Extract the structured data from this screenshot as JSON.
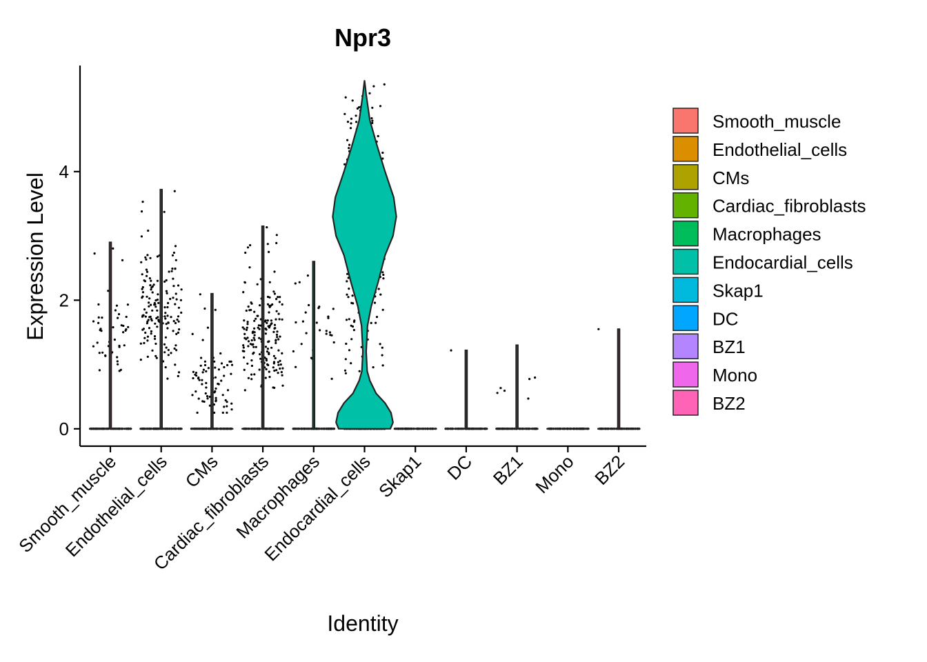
{
  "chart_data": {
    "type": "violin",
    "title": "Npr3",
    "xlabel": "Identity",
    "ylabel": "Expression Level",
    "ylim": [
      -0.27,
      5.65
    ],
    "yticks": [
      0,
      2,
      4
    ],
    "grid": false,
    "legend_position": "right",
    "categories": [
      "Smooth_muscle",
      "Endothelial_cells",
      "CMs",
      "Cardiac_fibroblasts",
      "Macrophages",
      "Endocardial_cells",
      "Skap1",
      "DC",
      "BZ1",
      "Mono",
      "BZ2"
    ],
    "series": [
      {
        "name": "Smooth_muscle",
        "color": "#F8766D",
        "max": 2.9,
        "zero_fraction": 0.78,
        "nonzero_range": [
          0.9,
          2.9
        ],
        "nonzero_center": 1.5
      },
      {
        "name": "Endothelial_cells",
        "color": "#DB8E00",
        "max": 3.72,
        "zero_fraction": 0.62,
        "nonzero_range": [
          0.75,
          3.72
        ],
        "nonzero_center": 1.8
      },
      {
        "name": "CMs",
        "color": "#AEA200",
        "max": 2.1,
        "zero_fraction": 0.72,
        "nonzero_range": [
          0.25,
          2.1
        ],
        "nonzero_center": 0.7
      },
      {
        "name": "Cardiac_fibroblasts",
        "color": "#64B200",
        "max": 3.15,
        "zero_fraction": 0.55,
        "nonzero_range": [
          0.6,
          3.15
        ],
        "nonzero_center": 1.4
      },
      {
        "name": "Macrophages",
        "color": "#00BD5C",
        "max": 2.6,
        "zero_fraction": 0.85,
        "nonzero_range": [
          0.7,
          2.6
        ],
        "nonzero_center": 1.5
      },
      {
        "name": "Endocardial_cells",
        "color": "#00C1A7",
        "max": 5.42,
        "zero_fraction": 0.05,
        "nonzero_range": [
          0.85,
          5.42
        ],
        "nonzero_center": 3.3
      },
      {
        "name": "Skap1",
        "color": "#00BADE",
        "max": 0.0,
        "zero_fraction": 1.0,
        "nonzero_range": [
          0,
          0
        ],
        "nonzero_center": 0
      },
      {
        "name": "DC",
        "color": "#00A6FF",
        "max": 1.22,
        "zero_fraction": 0.97,
        "nonzero_range": [
          1.22,
          1.22
        ],
        "nonzero_center": 1.22
      },
      {
        "name": "BZ1",
        "color": "#B385FF",
        "max": 1.3,
        "zero_fraction": 0.9,
        "nonzero_range": [
          0.45,
          1.3
        ],
        "nonzero_center": 0.7
      },
      {
        "name": "Mono",
        "color": "#EF67EB",
        "max": 0.0,
        "zero_fraction": 1.0,
        "nonzero_range": [
          0,
          0
        ],
        "nonzero_center": 0
      },
      {
        "name": "BZ2",
        "color": "#FF63B6",
        "max": 1.55,
        "zero_fraction": 0.85,
        "nonzero_range": [
          1.55,
          1.55
        ],
        "nonzero_center": 1.55
      }
    ]
  }
}
